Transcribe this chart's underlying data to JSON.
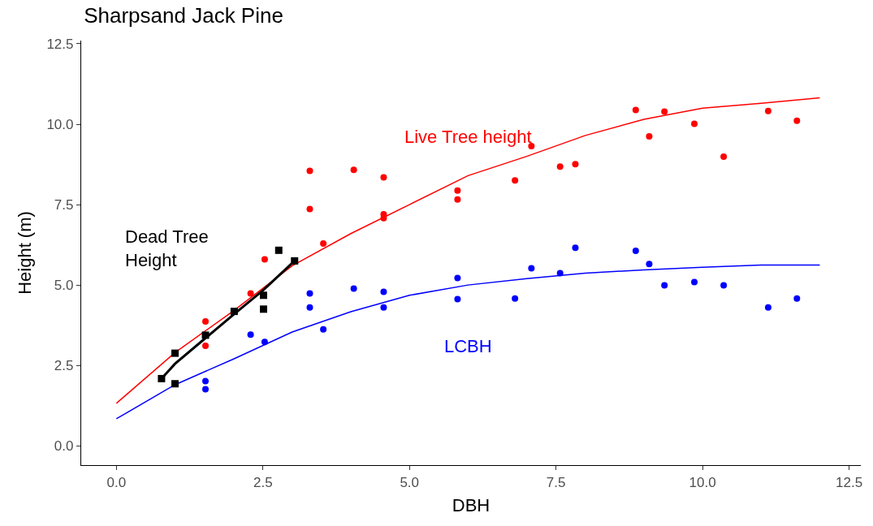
{
  "chart_data": {
    "type": "scatter",
    "title": "Sharpsand Jack Pine",
    "xlabel": "DBH",
    "ylabel": "Height (m)",
    "xlim": [
      -0.6,
      12.7
    ],
    "ylim": [
      -0.6,
      12.6
    ],
    "xticks": [
      {
        "value": 0,
        "label": "0.0"
      },
      {
        "value": 2.5,
        "label": "2.5"
      },
      {
        "value": 5,
        "label": "5.0"
      },
      {
        "value": 7.5,
        "label": "7.5"
      },
      {
        "value": 10,
        "label": "10.0"
      },
      {
        "value": 12.5,
        "label": "12.5"
      }
    ],
    "yticks": [
      {
        "value": 0,
        "label": "0.0"
      },
      {
        "value": 2.5,
        "label": "2.5"
      },
      {
        "value": 5,
        "label": "5.0"
      },
      {
        "value": 7.5,
        "label": "7.5"
      },
      {
        "value": 10,
        "label": "10.0"
      },
      {
        "value": 12.5,
        "label": "12.5"
      }
    ],
    "grid": false,
    "legend": false,
    "series": [
      {
        "type": "scatter",
        "marker": "circle",
        "color": "#ff0000",
        "x": [
          1.52,
          1.52,
          2.29,
          2.53,
          3.3,
          3.3,
          3.53,
          4.05,
          4.56,
          4.56,
          4.56,
          5.82,
          5.82,
          6.8,
          7.08,
          7.57,
          7.83,
          8.86,
          9.09,
          9.35,
          9.86,
          10.36,
          11.12,
          11.61
        ],
        "values": [
          3.87,
          3.11,
          4.74,
          5.8,
          8.55,
          7.36,
          6.29,
          8.58,
          8.35,
          7.2,
          7.08,
          7.94,
          7.66,
          8.25,
          9.32,
          8.68,
          8.76,
          10.44,
          9.62,
          10.39,
          10.01,
          8.99,
          10.41,
          10.11
        ]
      },
      {
        "type": "scatter",
        "marker": "circle",
        "color": "#0000ff",
        "x": [
          1.52,
          1.52,
          2.29,
          2.53,
          3.3,
          3.3,
          3.53,
          4.05,
          4.56,
          4.56,
          5.82,
          5.82,
          6.8,
          7.08,
          7.57,
          7.83,
          8.86,
          9.09,
          9.35,
          9.86,
          10.36,
          11.12,
          11.61
        ],
        "values": [
          2.01,
          1.76,
          3.46,
          3.23,
          4.74,
          4.3,
          3.62,
          4.89,
          4.79,
          4.3,
          5.22,
          4.56,
          4.58,
          5.52,
          5.37,
          6.16,
          6.06,
          5.65,
          4.99,
          5.09,
          4.99,
          4.3,
          4.58
        ]
      },
      {
        "type": "scatter",
        "marker": "square",
        "color": "#000000",
        "x": [
          0.77,
          1.0,
          1.0,
          1.52,
          2.01,
          2.51,
          2.51,
          2.77,
          3.04
        ],
        "values": [
          2.09,
          2.88,
          1.93,
          3.44,
          4.18,
          4.68,
          4.25,
          6.08,
          5.75
        ]
      },
      {
        "type": "line",
        "marker": "none",
        "name": "Live Tree height",
        "color": "#ff0000",
        "x": [
          0,
          1,
          2,
          3,
          4,
          5,
          6,
          7,
          8,
          9,
          10,
          11,
          12
        ],
        "values": [
          1.32,
          2.9,
          4.2,
          5.6,
          6.6,
          7.5,
          8.4,
          9.0,
          9.65,
          10.15,
          10.5,
          10.65,
          10.82
        ]
      },
      {
        "type": "line",
        "marker": "none",
        "name": "LCBH",
        "color": "#0000ff",
        "x": [
          0,
          1,
          2,
          3,
          4,
          5,
          6,
          7,
          8,
          9,
          10,
          11,
          12
        ],
        "values": [
          0.84,
          1.9,
          2.7,
          3.54,
          4.17,
          4.68,
          5.0,
          5.2,
          5.37,
          5.47,
          5.55,
          5.62,
          5.62
        ]
      },
      {
        "type": "line",
        "marker": "none",
        "name": "Dead Tree\nHeight",
        "color": "#000000",
        "x": [
          0.77,
          1.0,
          1.52,
          2.01,
          2.51,
          3.04
        ],
        "values": [
          2.09,
          2.55,
          3.35,
          4.1,
          4.85,
          5.75
        ]
      }
    ]
  }
}
